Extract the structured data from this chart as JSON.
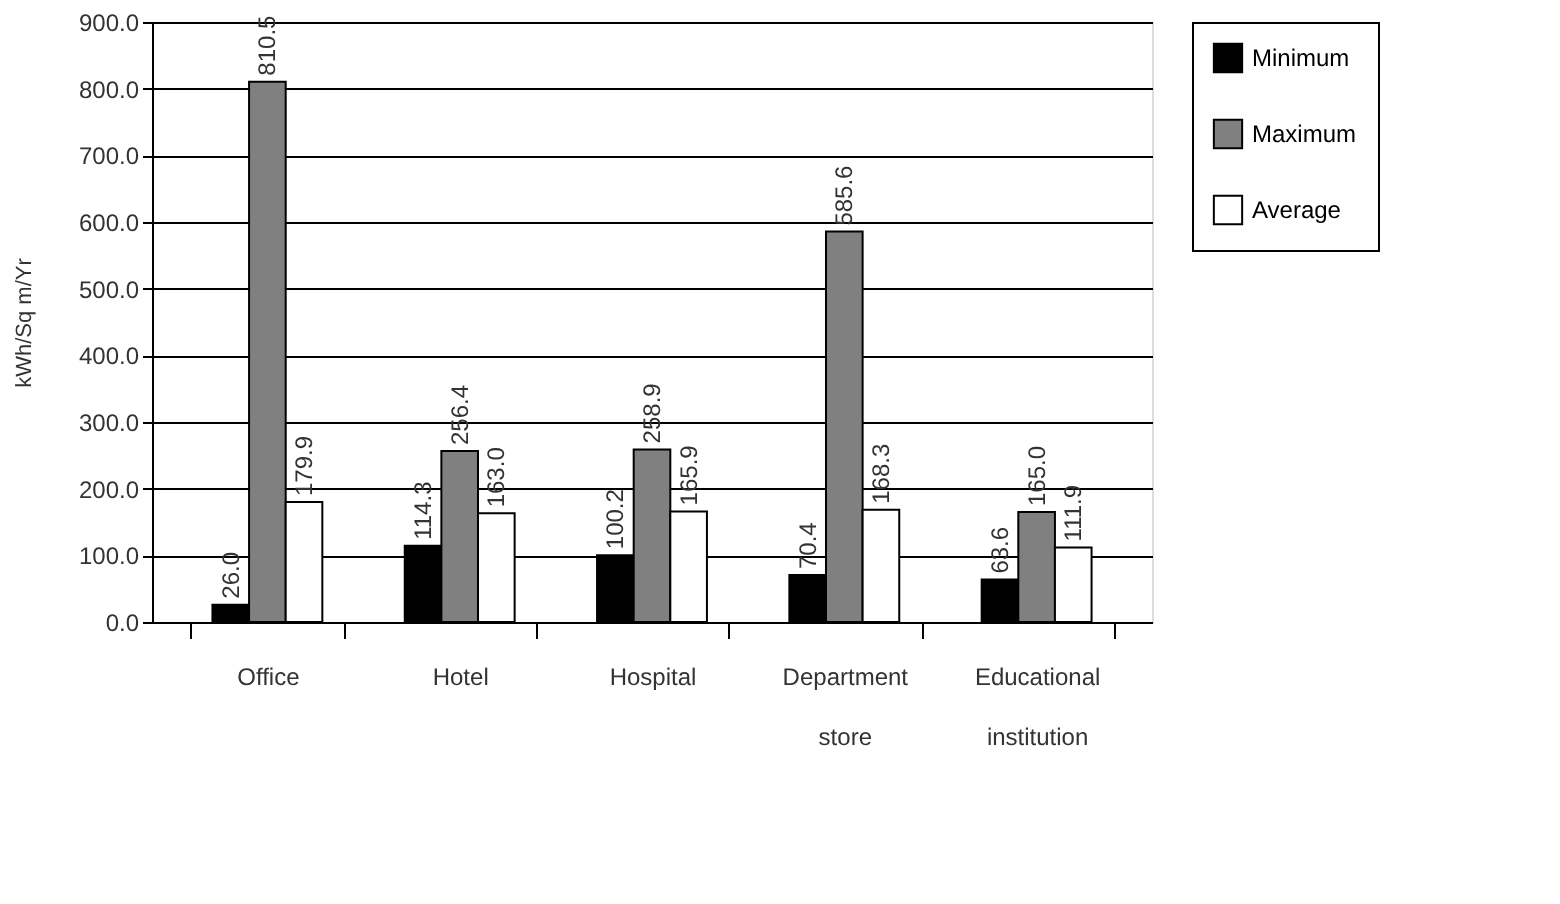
{
  "chart_data": {
    "type": "bar",
    "ylabel": "kWh/Sq m/Yr",
    "categories": [
      "Office",
      "Hotel",
      "Hospital",
      "Department store",
      "Educational institution"
    ],
    "series": [
      {
        "name": "Minimum",
        "color": "#000000",
        "values": [
          26.0,
          114.3,
          100.2,
          70.4,
          63.6
        ],
        "value_labels": [
          "26.0",
          "114.3",
          "100.2",
          "70.4",
          "63.6"
        ]
      },
      {
        "name": "Maximum",
        "color": "#808080",
        "values": [
          810.5,
          256.4,
          258.9,
          585.6,
          165.0
        ],
        "value_labels": [
          "810.5",
          "256.4",
          "258.9",
          "585.6",
          "165.0"
        ]
      },
      {
        "name": "Average",
        "color": "#ffffff",
        "values": [
          179.9,
          163.0,
          165.9,
          168.3,
          111.9
        ],
        "value_labels": [
          "179.9",
          "163.0",
          "165.9",
          "168.3",
          "111.9"
        ]
      }
    ],
    "ylim": [
      0,
      900
    ],
    "yticks": [
      {
        "value": 0,
        "label": "0.0"
      },
      {
        "value": 100,
        "label": "100.0"
      },
      {
        "value": 200,
        "label": "200.0"
      },
      {
        "value": 300,
        "label": "300.0"
      },
      {
        "value": 400,
        "label": "400.0"
      },
      {
        "value": 500,
        "label": "500.0"
      },
      {
        "value": 600,
        "label": "600.0"
      },
      {
        "value": 700,
        "label": "700.0"
      },
      {
        "value": 800,
        "label": "800.0"
      },
      {
        "value": 900,
        "label": "900.0"
      }
    ],
    "grid": "y",
    "legend": "right"
  }
}
